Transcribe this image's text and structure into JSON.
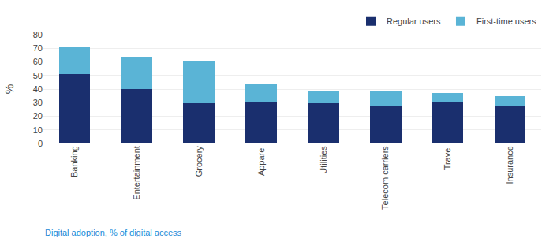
{
  "chart_data": {
    "type": "bar",
    "stacked": true,
    "categories": [
      "Banking",
      "Entertainment",
      "Grocery",
      "Apparel",
      "Utilities",
      "Telecom carriers",
      "Travel",
      "Insurance"
    ],
    "series": [
      {
        "name": "Regular users",
        "color": "#1a2f6e",
        "values": [
          51,
          40,
          30,
          31,
          30,
          27,
          31,
          27
        ]
      },
      {
        "name": "First-time users",
        "color": "#5ab4d6",
        "values": [
          20,
          24,
          31,
          13,
          9,
          11,
          6,
          8
        ]
      }
    ],
    "ylabel": "%",
    "ylim": [
      0,
      80
    ],
    "yticks": [
      0,
      10,
      20,
      30,
      40,
      50,
      60,
      70,
      80
    ],
    "grid": true,
    "legend": "top",
    "annotations": [
      {
        "text": "Digital adoption, % of digital access",
        "color": "#1a8cd8"
      }
    ]
  }
}
